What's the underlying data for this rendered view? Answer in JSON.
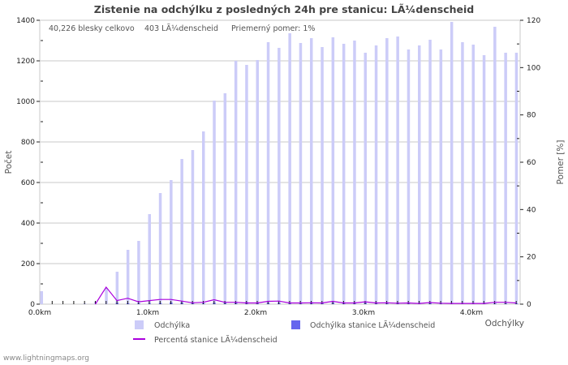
{
  "title": "Zistenie na odchýlku z posledných 24h pre stanicu: LÃ¼denscheid",
  "info": {
    "total": "40,226 blesky celkovo",
    "station": "403 LÃ¼denscheid",
    "ratio": "Priemerný pomer: 1%"
  },
  "axes": {
    "left_label": "Počet",
    "right_label": "Pomer [%]",
    "x_label": "Odchýlky",
    "left_ticks": [
      "0",
      "200",
      "400",
      "600",
      "800",
      "1000",
      "1200",
      "1400"
    ],
    "right_ticks": [
      "0",
      "20",
      "40",
      "60",
      "80",
      "100",
      "120"
    ],
    "x_ticks": [
      "0.0km",
      "1.0km",
      "2.0km",
      "3.0km",
      "4.0km"
    ]
  },
  "legend": {
    "items": [
      {
        "label": "Odchýlka",
        "color": "#ccccf8"
      },
      {
        "label": "Odchýlka stanice LÃ¼denscheid",
        "color": "#6666ee"
      },
      {
        "label": "Percentá stanice LÃ¼denscheid",
        "color": "#aa00dd"
      }
    ]
  },
  "footer": "www.lightningmaps.org",
  "chart_data": {
    "type": "bar",
    "title": "Zistenie na odchýlku z posledných 24h pre stanicu: LÃ¼denscheid",
    "xlabel": "Odchýlky",
    "ylabel": "Počet",
    "y2label": "Pomer [%]",
    "ylim": [
      0,
      1400
    ],
    "y2lim": [
      0,
      120
    ],
    "grid": true,
    "legend_position": "bottom",
    "categories": [
      "0.0",
      "0.1",
      "0.2",
      "0.3",
      "0.4",
      "0.5",
      "0.6",
      "0.7",
      "0.8",
      "0.9",
      "1.0",
      "1.1",
      "1.2",
      "1.3",
      "1.4",
      "1.5",
      "1.6",
      "1.7",
      "1.8",
      "1.9",
      "2.0",
      "2.1",
      "2.2",
      "2.3",
      "2.4",
      "2.5",
      "2.6",
      "2.7",
      "2.8",
      "2.9",
      "3.0",
      "3.1",
      "3.2",
      "3.3",
      "3.4",
      "3.5",
      "3.6",
      "3.7",
      "3.8",
      "3.9",
      "4.0",
      "4.1",
      "4.2",
      "4.3",
      "4.4",
      "4.5"
    ],
    "series": [
      {
        "name": "Odchýlka",
        "type": "bar",
        "axis": "left",
        "values": [
          64,
          0,
          0,
          0,
          4,
          12,
          80,
          160,
          268,
          312,
          444,
          548,
          612,
          716,
          760,
          852,
          1004,
          1040,
          1200,
          1180,
          1204,
          1292,
          1264,
          1336,
          1288,
          1312,
          1268,
          1316,
          1284,
          1300,
          1240,
          1276,
          1312,
          1320,
          1256,
          1276,
          1304,
          1256,
          1392,
          1292,
          1280,
          1228,
          1368,
          1240,
          1240,
          1240
        ]
      },
      {
        "name": "Odchýlka stanice LÃ¼denscheid",
        "type": "bar",
        "axis": "left",
        "values": [
          0,
          0,
          0,
          0,
          0,
          0,
          0,
          6,
          4,
          4,
          3,
          5,
          8,
          7,
          6,
          4,
          6,
          6,
          6,
          10,
          8,
          6,
          6,
          6,
          6,
          10,
          6,
          6,
          6,
          8,
          6,
          6,
          6,
          8,
          6,
          4,
          6,
          6,
          4,
          4,
          4,
          4,
          4,
          4,
          4,
          4
        ]
      },
      {
        "name": "Percentá stanice LÃ¼denscheid",
        "type": "line",
        "axis": "right",
        "values": [
          null,
          null,
          null,
          null,
          null,
          0,
          7.2,
          1.5,
          2.5,
          1.0,
          1.5,
          2.0,
          2.0,
          1.3,
          0.6,
          0.8,
          1.9,
          0.8,
          0.8,
          0.5,
          0.5,
          1.2,
          1.3,
          0.5,
          0.5,
          0.6,
          0.5,
          1.2,
          0.5,
          0.5,
          1.0,
          0.5,
          0.6,
          0.4,
          0.5,
          0.3,
          0.7,
          0.4,
          0.3,
          0.3,
          0.3,
          0.3,
          0.8,
          0.8,
          0.5,
          0.5
        ]
      }
    ]
  }
}
